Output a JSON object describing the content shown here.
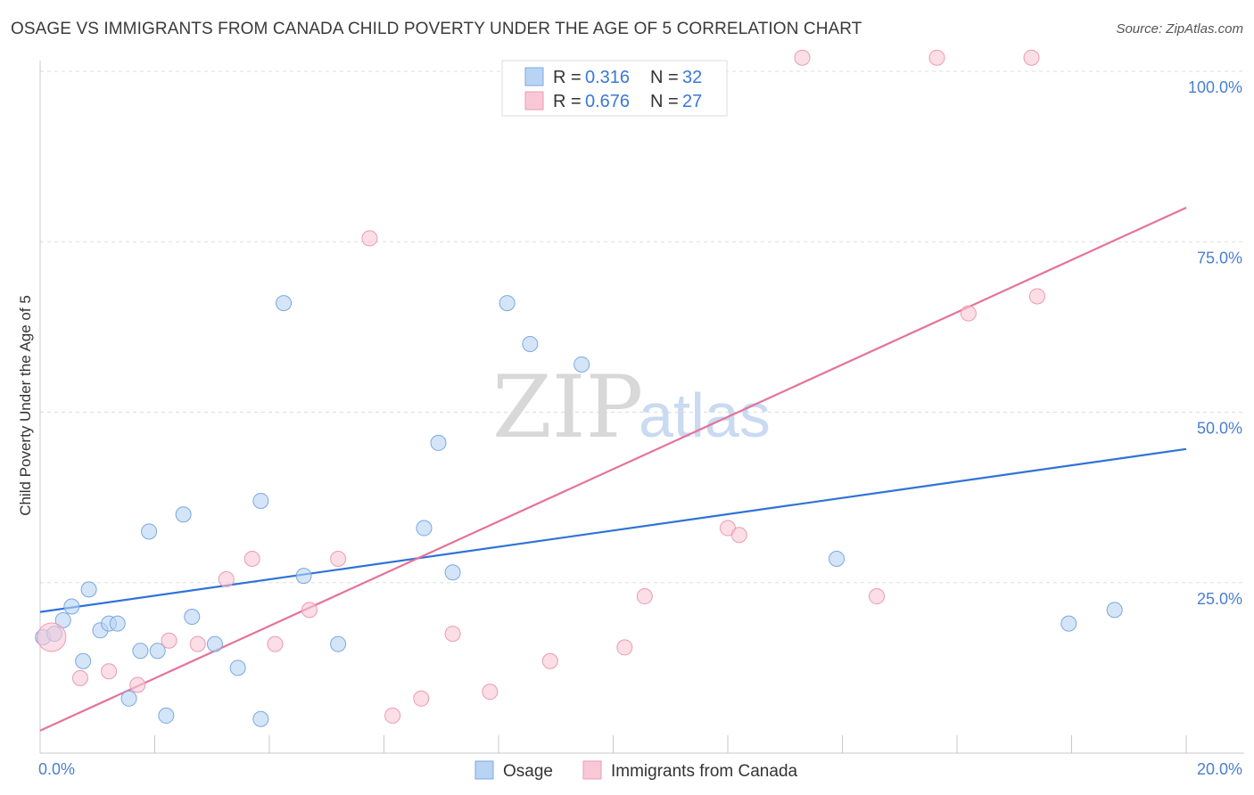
{
  "title": "OSAGE VS IMMIGRANTS FROM CANADA CHILD POVERTY UNDER THE AGE OF 5 CORRELATION CHART",
  "source": "Source: ZipAtlas.com",
  "watermark": {
    "zip": "ZIP",
    "atlas": "atlas"
  },
  "colors": {
    "osage_fill": "#b9d3f3",
    "osage_stroke": "#7aa8e0",
    "osage_line": "#2f73d6",
    "canada_fill": "#f9c8d6",
    "canada_stroke": "#ec9ab3",
    "canada_line": "#e5739a",
    "grid": "#dddddd",
    "tick_text": "#4a7fd0"
  },
  "legend": {
    "rows": [
      {
        "r_label": "R = ",
        "r_value": "0.316",
        "n_label": "N = ",
        "n_value": "32"
      },
      {
        "r_label": "R = ",
        "r_value": "0.676",
        "n_label": "N = ",
        "n_value": "27"
      }
    ]
  },
  "bottom_legend": [
    "Osage",
    "Immigrants from Canada"
  ],
  "chart_data": {
    "type": "scatter",
    "title": "OSAGE VS IMMIGRANTS FROM CANADA CHILD POVERTY UNDER THE AGE OF 5 CORRELATION CHART",
    "xlabel": "",
    "ylabel": "Child Poverty Under the Age of 5",
    "xlim": [
      0,
      20
    ],
    "ylim": [
      0,
      100
    ],
    "x_tick_labels": [
      "0.0%",
      "20.0%"
    ],
    "y_tick_labels": [
      "25.0%",
      "50.0%",
      "75.0%",
      "100.0%"
    ],
    "y_ticks": [
      25,
      50,
      75,
      100
    ],
    "series": [
      {
        "name": "Osage",
        "r": 0.316,
        "n": 32,
        "trend": {
          "x": [
            0,
            20
          ],
          "y": [
            20.7,
            44.6
          ]
        },
        "points": [
          {
            "x": 0.05,
            "y": 17.0
          },
          {
            "x": 0.25,
            "y": 17.5
          },
          {
            "x": 0.4,
            "y": 19.5
          },
          {
            "x": 0.55,
            "y": 21.5
          },
          {
            "x": 0.75,
            "y": 13.5
          },
          {
            "x": 0.85,
            "y": 24.0
          },
          {
            "x": 1.05,
            "y": 18.0
          },
          {
            "x": 1.2,
            "y": 19.0
          },
          {
            "x": 1.35,
            "y": 19.0
          },
          {
            "x": 1.55,
            "y": 8.0
          },
          {
            "x": 1.75,
            "y": 15.0
          },
          {
            "x": 1.9,
            "y": 32.5
          },
          {
            "x": 2.05,
            "y": 15.0
          },
          {
            "x": 2.2,
            "y": 5.5
          },
          {
            "x": 2.5,
            "y": 35.0
          },
          {
            "x": 2.65,
            "y": 20.0
          },
          {
            "x": 3.05,
            "y": 16.0
          },
          {
            "x": 3.45,
            "y": 12.5
          },
          {
            "x": 3.85,
            "y": 5.0
          },
          {
            "x": 3.85,
            "y": 37.0
          },
          {
            "x": 4.25,
            "y": 66.0
          },
          {
            "x": 4.6,
            "y": 26.0
          },
          {
            "x": 5.2,
            "y": 16.0
          },
          {
            "x": 6.7,
            "y": 33.0
          },
          {
            "x": 6.95,
            "y": 45.5
          },
          {
            "x": 7.2,
            "y": 26.5
          },
          {
            "x": 8.15,
            "y": 66.0
          },
          {
            "x": 8.55,
            "y": 60.0
          },
          {
            "x": 9.45,
            "y": 57.0
          },
          {
            "x": 13.9,
            "y": 28.5
          },
          {
            "x": 17.95,
            "y": 19.0
          },
          {
            "x": 18.75,
            "y": 21.0
          }
        ]
      },
      {
        "name": "Immigrants from Canada",
        "r": 0.676,
        "n": 27,
        "trend": {
          "x": [
            0,
            20
          ],
          "y": [
            3.3,
            80.0
          ]
        },
        "points": [
          {
            "x": 0.2,
            "y": 17.0
          },
          {
            "x": 0.7,
            "y": 11.0
          },
          {
            "x": 1.2,
            "y": 12.0
          },
          {
            "x": 1.7,
            "y": 10.0
          },
          {
            "x": 2.25,
            "y": 16.5
          },
          {
            "x": 2.75,
            "y": 16.0
          },
          {
            "x": 3.25,
            "y": 25.5
          },
          {
            "x": 3.7,
            "y": 28.5
          },
          {
            "x": 4.1,
            "y": 16.0
          },
          {
            "x": 4.7,
            "y": 21.0
          },
          {
            "x": 5.2,
            "y": 28.5
          },
          {
            "x": 5.75,
            "y": 75.5
          },
          {
            "x": 6.15,
            "y": 5.5
          },
          {
            "x": 6.65,
            "y": 8.0
          },
          {
            "x": 7.2,
            "y": 17.5
          },
          {
            "x": 7.85,
            "y": 9.0
          },
          {
            "x": 8.9,
            "y": 13.5
          },
          {
            "x": 10.2,
            "y": 15.5
          },
          {
            "x": 10.55,
            "y": 23.0
          },
          {
            "x": 12.0,
            "y": 33.0
          },
          {
            "x": 12.2,
            "y": 32.0
          },
          {
            "x": 13.3,
            "y": 102.0
          },
          {
            "x": 14.6,
            "y": 23.0
          },
          {
            "x": 15.65,
            "y": 102.0
          },
          {
            "x": 16.2,
            "y": 64.5
          },
          {
            "x": 17.3,
            "y": 102.0
          },
          {
            "x": 17.4,
            "y": 67.0
          }
        ]
      }
    ]
  }
}
